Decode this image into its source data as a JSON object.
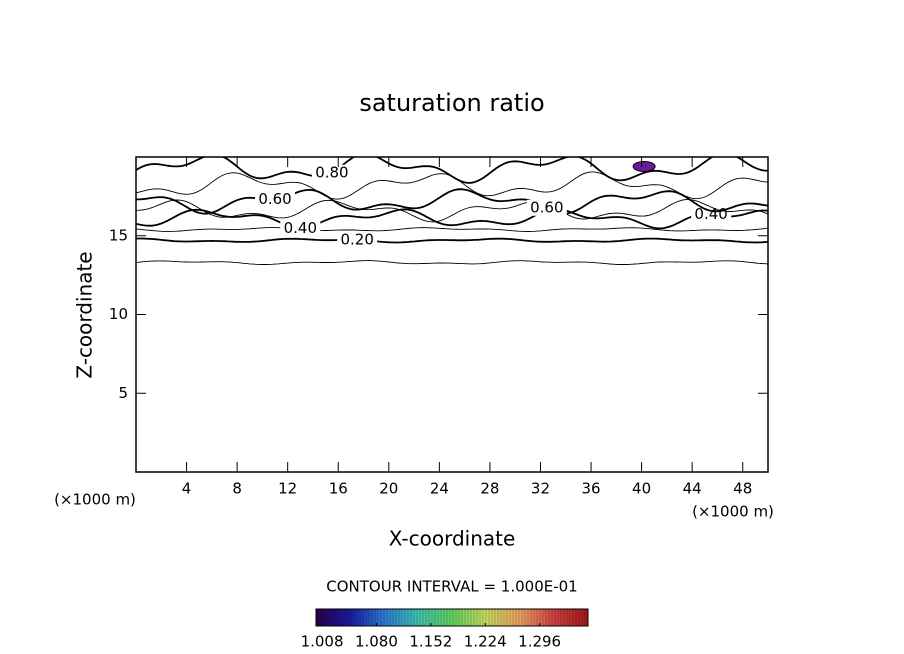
{
  "chart_data": {
    "type": "contour",
    "title": "saturation ratio",
    "x_label": "X-coordinate",
    "y_label": "Z-coordinate",
    "x_unit": "(×1000 m)",
    "y_unit": "(×1000 m)",
    "xlim": [
      0,
      50
    ],
    "ylim": [
      0,
      20
    ],
    "xticks": [
      4,
      8,
      12,
      16,
      20,
      24,
      28,
      32,
      36,
      40,
      44,
      48
    ],
    "yticks": [
      5,
      10,
      15
    ],
    "contours": [
      {
        "level": 0.1,
        "z": 13.3
      },
      {
        "level": 0.2,
        "z": 14.7,
        "label": "0.20",
        "label_x": [
          17.5
        ]
      },
      {
        "level": 0.3,
        "z": 15.4
      },
      {
        "level": 0.4,
        "z": 16.1,
        "label": "0.40",
        "label_x": [
          13,
          45.5
        ]
      },
      {
        "level": 0.5,
        "z": 16.6
      },
      {
        "level": 0.6,
        "z": 17.2,
        "label": "0.60",
        "label_x": [
          11,
          32.5
        ]
      },
      {
        "level": 0.7,
        "z": 18.2
      },
      {
        "level": 0.8,
        "z": 19.3,
        "label": "0.80",
        "label_x": [
          15.5
        ]
      }
    ],
    "shaded_regions": [
      {
        "x": 40.2,
        "z": 19.4,
        "color": "#6a1b9a"
      }
    ],
    "contour_interval_label": "CONTOUR INTERVAL = 1.000E-01",
    "colorbar": {
      "lim": [
        1.0,
        1.36
      ],
      "colors": [
        "#2a004a",
        "#1a1aa0",
        "#2a7ad0",
        "#40c0b0",
        "#60d060",
        "#c8d860",
        "#e8a060",
        "#d04040",
        "#a01818"
      ],
      "ticks": [
        1.008,
        {
          "value": 1.08,
          "label": "1.080"
        },
        1.152,
        1.224,
        1.296
      ]
    }
  }
}
